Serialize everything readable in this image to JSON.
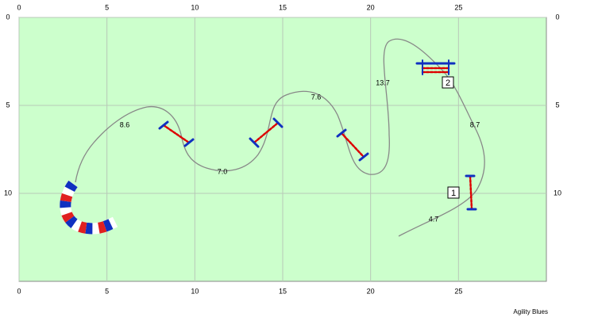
{
  "axes": {
    "x_ticks": [
      0,
      5,
      10,
      15,
      20,
      25
    ],
    "y_ticks": [
      0,
      5,
      10
    ],
    "x_max": 30,
    "y_max": 15
  },
  "segment_labels": [
    "8.6",
    "7.0",
    "7.6",
    "13.7",
    "8.7",
    "4.7"
  ],
  "obstacle_numbers": [
    "1",
    "2"
  ],
  "footer": "Agility Blues"
}
